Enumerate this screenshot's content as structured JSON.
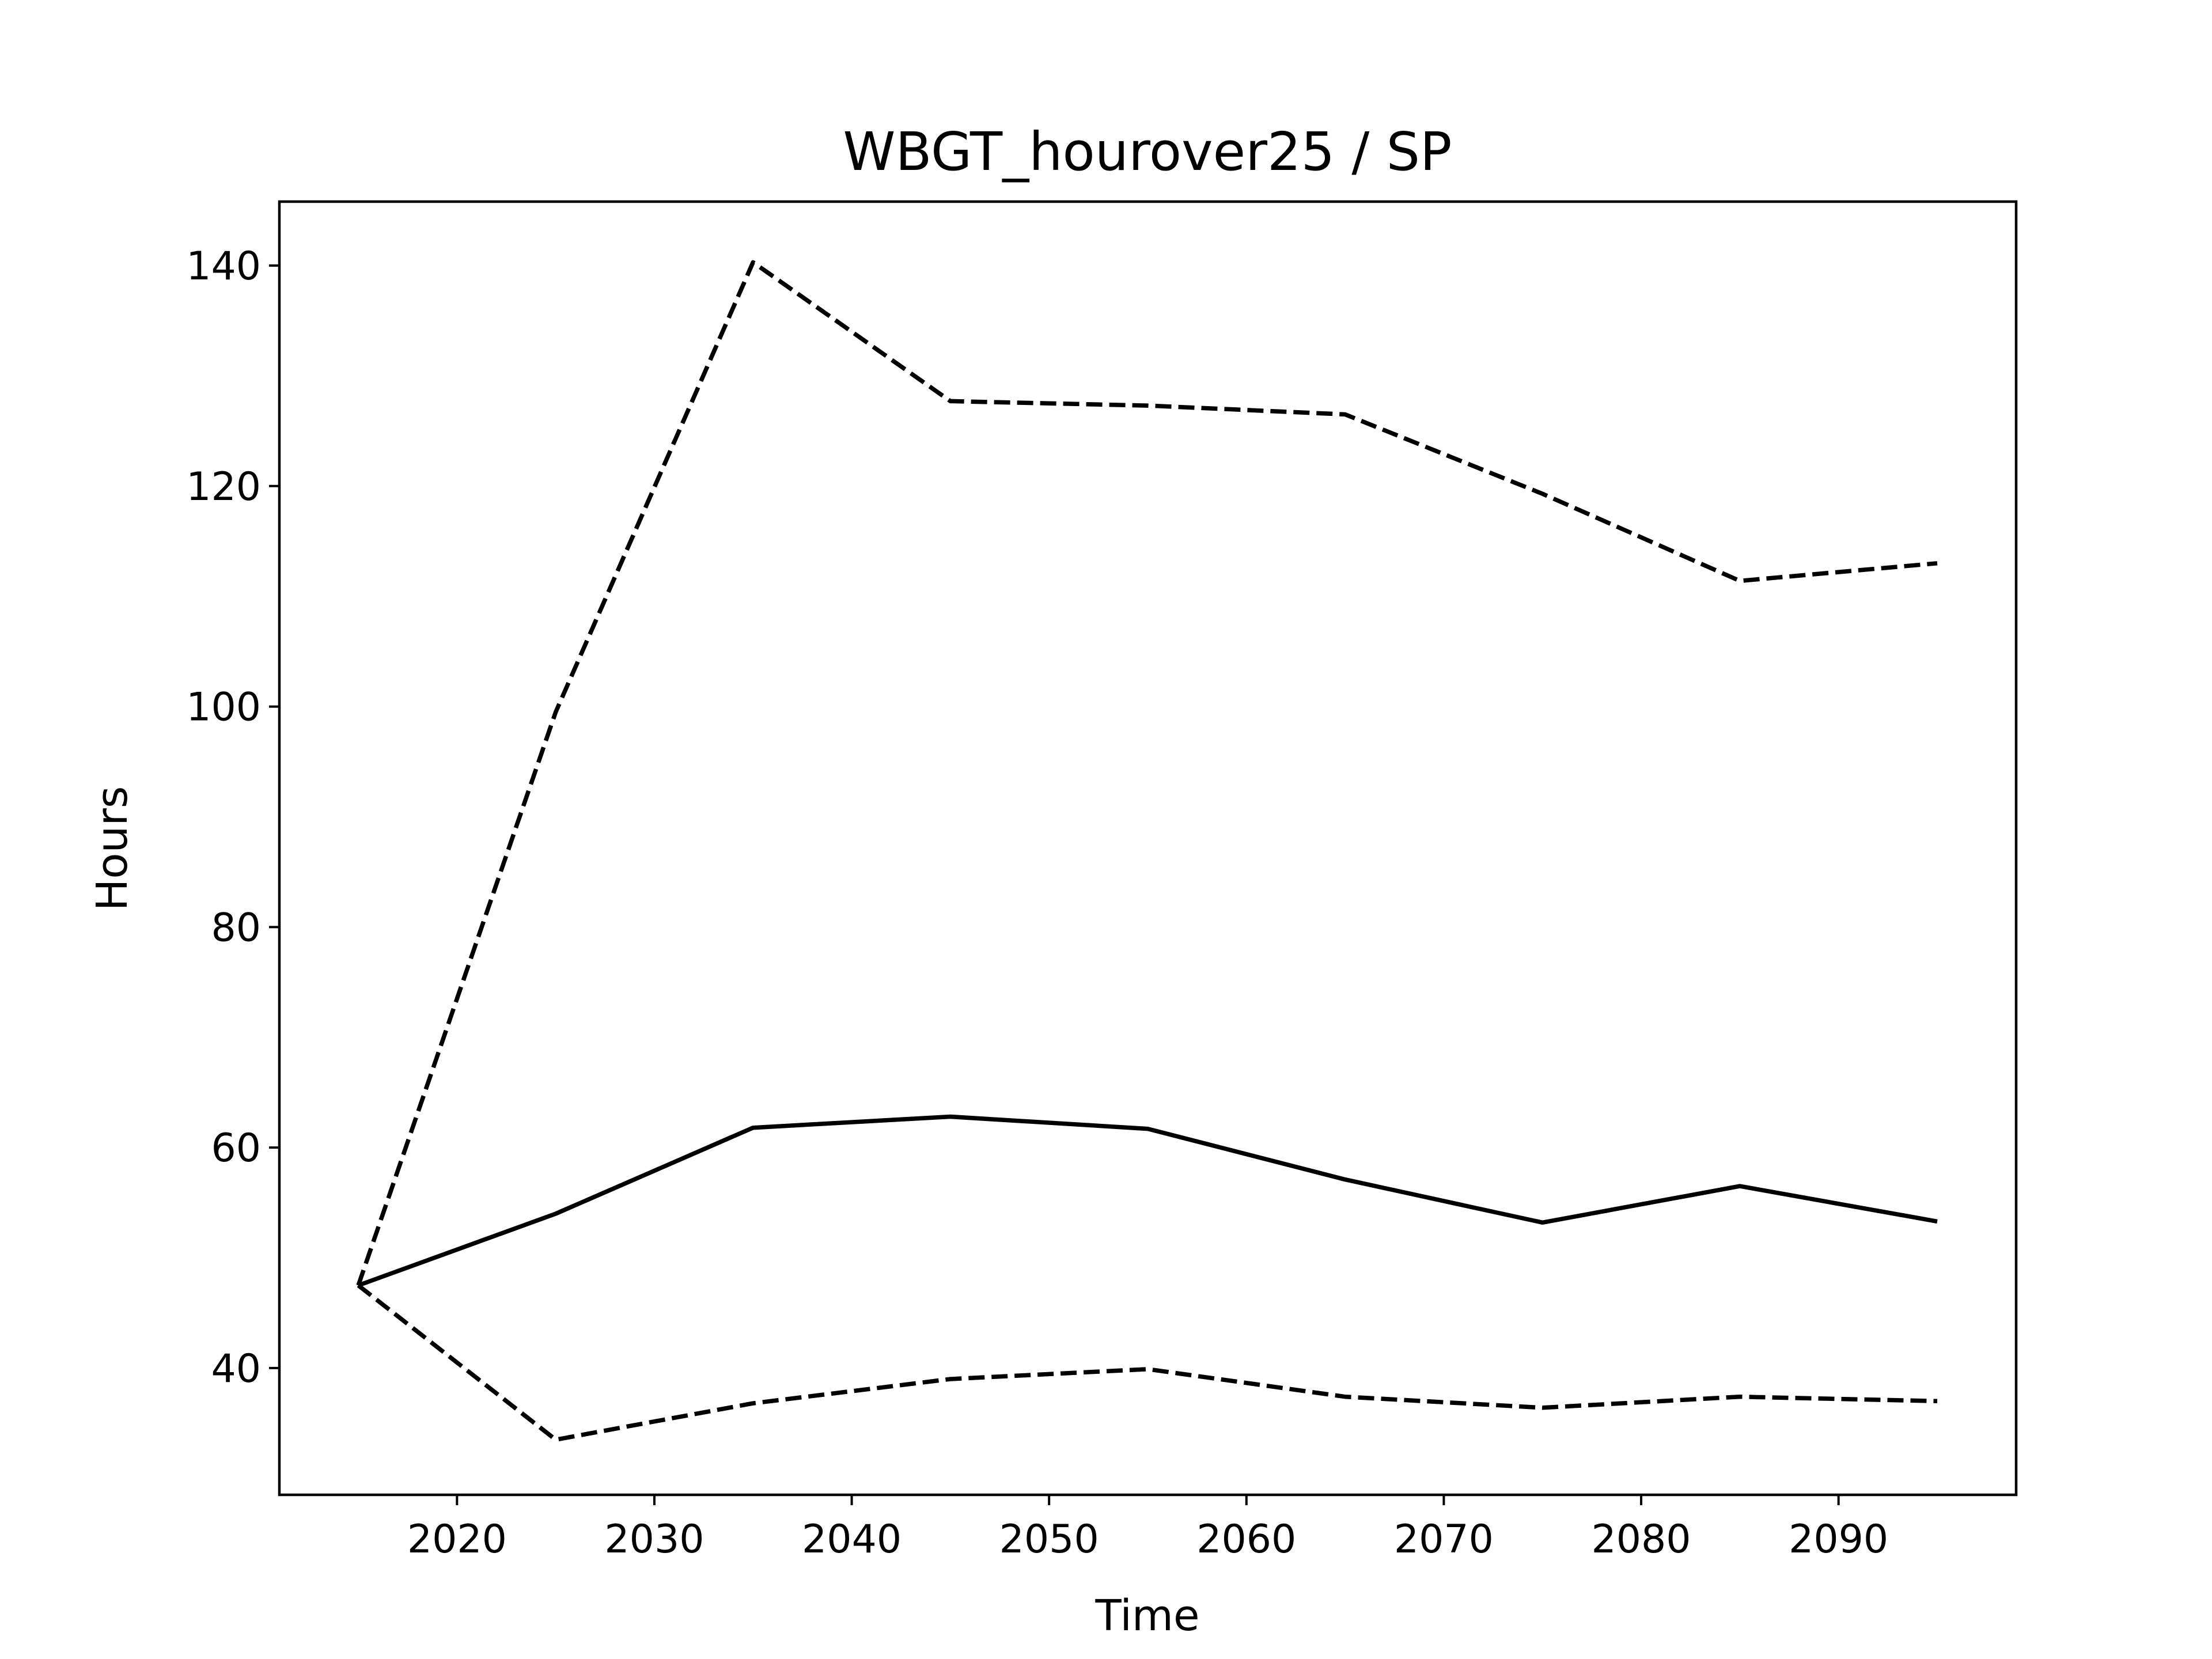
{
  "chart_data": {
    "type": "line",
    "title": "WBGT_hourover25 / SP",
    "xlabel": "Time",
    "ylabel": "Hours",
    "xlim": [
      2011,
      2099
    ],
    "ylim": [
      28.5,
      145.8
    ],
    "xticks": [
      2020,
      2030,
      2040,
      2050,
      2060,
      2070,
      2080,
      2090
    ],
    "yticks": [
      40,
      60,
      80,
      100,
      120,
      140
    ],
    "grid": false,
    "x": [
      2015,
      2025,
      2035,
      2045,
      2055,
      2065,
      2075,
      2085,
      2095
    ],
    "series": [
      {
        "style": "solid",
        "color": "#000000",
        "values": [
          47.5,
          54.0,
          61.8,
          62.8,
          61.7,
          57.1,
          53.2,
          56.5,
          53.3
        ]
      },
      {
        "style": "dashed",
        "color": "#000000",
        "values": [
          47.5,
          99.5,
          140.3,
          127.7,
          127.3,
          126.5,
          119.3,
          111.4,
          113.0
        ]
      },
      {
        "style": "dashed",
        "color": "#000000",
        "values": [
          47.5,
          33.5,
          36.8,
          39.0,
          39.9,
          37.4,
          36.4,
          37.4,
          37.0
        ]
      }
    ]
  }
}
